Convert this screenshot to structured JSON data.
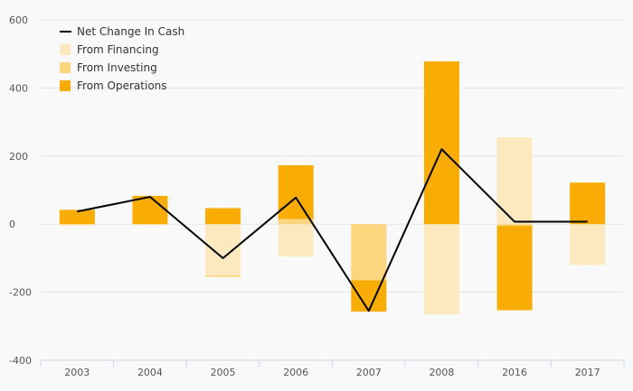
{
  "colors": {
    "background": "#f9f9f9",
    "gridline": "#e6e6e6",
    "axis": "#ccd6eb",
    "financing": "#fde9bf",
    "investing": "#fdd57e",
    "operations": "#f9ac03",
    "net_line": "#000000"
  },
  "chart_data": {
    "type": "bar",
    "stacked": true,
    "categories": [
      "2003",
      "2004",
      "2005",
      "2006",
      "2007",
      "2008",
      "2016",
      "2017"
    ],
    "series": [
      {
        "name": "From Financing",
        "kind": "bar",
        "color_key": "financing",
        "values": [
          -5,
          -3,
          -150,
          -95,
          0,
          -265,
          255,
          -120
        ]
      },
      {
        "name": "From Investing",
        "kind": "bar",
        "color_key": "investing",
        "values": [
          0,
          0,
          -5,
          15,
          -165,
          0,
          -5,
          0
        ]
      },
      {
        "name": "From Operations",
        "kind": "bar",
        "color_key": "operations",
        "values": [
          42,
          83,
          47,
          158,
          -92,
          478,
          -248,
          122
        ]
      },
      {
        "name": "Net Change In Cash",
        "kind": "line",
        "color_key": "net_line",
        "values": [
          37,
          80,
          -100,
          78,
          -255,
          220,
          7,
          7
        ]
      }
    ],
    "ylim": [
      -400,
      600
    ],
    "yticks": [
      -400,
      -200,
      0,
      200,
      400,
      600
    ],
    "grid": true,
    "legend_position": "top-left",
    "title": "",
    "xlabel": "",
    "ylabel": ""
  }
}
